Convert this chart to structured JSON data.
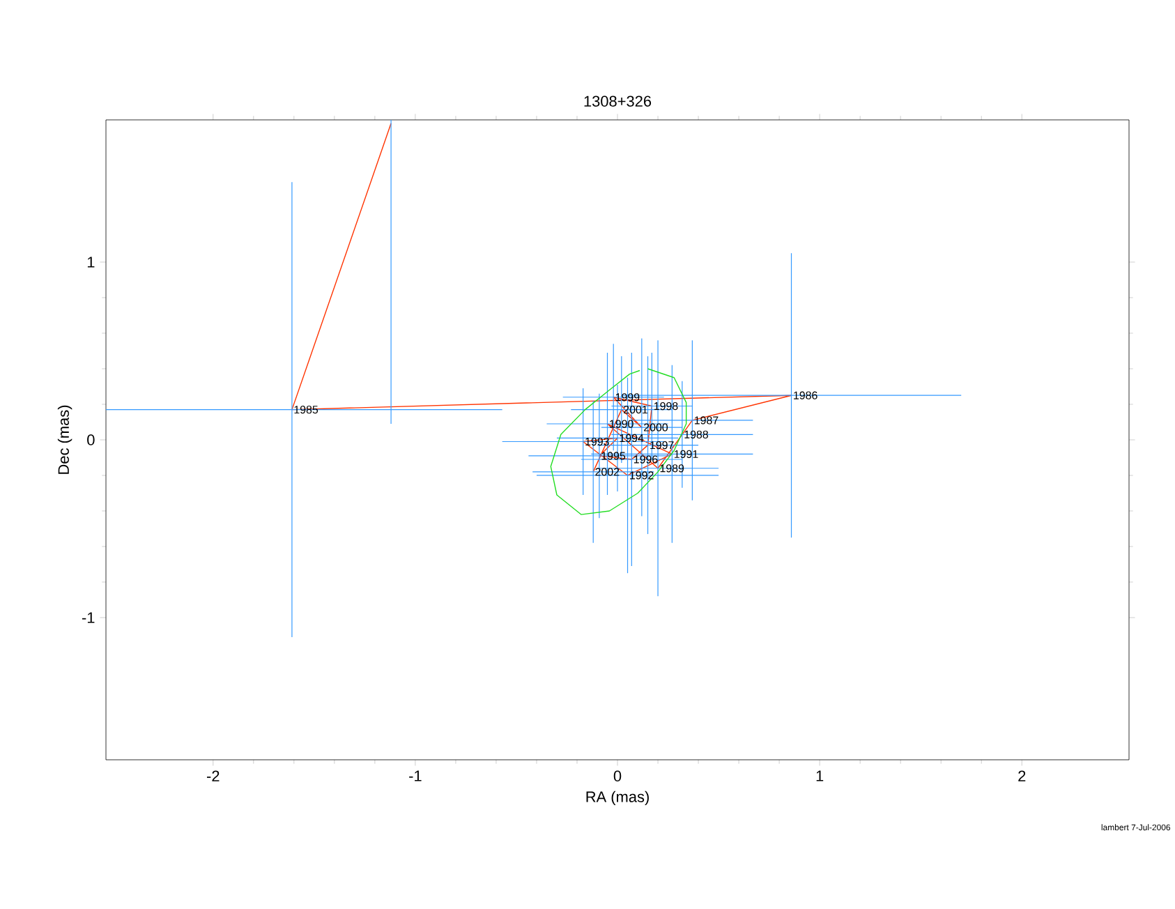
{
  "chart_data": {
    "type": "line",
    "title": "1308+326",
    "xlabel": "RA (mas)",
    "ylabel": "Dec (mas)",
    "xlim": [
      -2.53,
      2.53
    ],
    "ylim": [
      -1.8,
      1.8
    ],
    "xticks": [
      -2,
      -1,
      0,
      1,
      2
    ],
    "yticks": [
      -1,
      0,
      1
    ],
    "grid": false,
    "series": [
      {
        "color": "#ff3300",
        "marker": "none",
        "line_style": "solid",
        "x": [
          -1.12,
          -1.61,
          0.86,
          0.37,
          0.32,
          0.2,
          -0.05,
          0.27,
          0.05,
          -0.17,
          0.0,
          -0.09,
          0.07,
          0.15,
          0.17,
          -0.02,
          0.12,
          0.02,
          -0.12
        ],
        "values": [
          1.78,
          0.17,
          0.25,
          0.11,
          0.03,
          -0.16,
          0.09,
          -0.08,
          -0.2,
          -0.01,
          0.01,
          -0.09,
          -0.11,
          -0.03,
          0.19,
          0.24,
          0.07,
          0.17,
          -0.18
        ],
        "xerrors": [
          null,
          [
            -2.53,
            -0.57
          ],
          0.84,
          0.3,
          0.35,
          0.3,
          0.3,
          0.4,
          0.45,
          0.4,
          0.3,
          0.35,
          0.25,
          0.25,
          0.2,
          0.25,
          0.2,
          0.25,
          0.3
        ],
        "errors": [
          [
            0.09,
            1.8
          ],
          1.28,
          0.8,
          0.45,
          0.3,
          0.72,
          0.4,
          0.5,
          0.55,
          0.3,
          0.3,
          0.35,
          0.6,
          0.5,
          0.3,
          0.3,
          0.5,
          0.3,
          0.4
        ]
      },
      {
        "type": "line",
        "color": "#22dd22",
        "marker": "none",
        "line_style": "solid",
        "x": [
          0.15,
          0.28,
          0.34,
          0.34,
          0.28,
          0.2,
          0.1,
          -0.04,
          -0.18,
          -0.3,
          -0.33,
          -0.28,
          -0.16,
          -0.04,
          0.06,
          0.11
        ],
        "values": [
          0.4,
          0.35,
          0.21,
          0.09,
          -0.06,
          -0.18,
          -0.3,
          -0.4,
          -0.42,
          -0.31,
          -0.15,
          0.03,
          0.17,
          0.28,
          0.37,
          0.39
        ]
      }
    ],
    "annotations": [
      {
        "text": "1985",
        "x": -1.61,
        "y": 0.17
      },
      {
        "text": "1986",
        "x": 0.86,
        "y": 0.25
      },
      {
        "text": "1987",
        "x": 0.37,
        "y": 0.11
      },
      {
        "text": "1988",
        "x": 0.32,
        "y": 0.03
      },
      {
        "text": "1989",
        "x": 0.2,
        "y": -0.16
      },
      {
        "text": "1990",
        "x": -0.05,
        "y": 0.09
      },
      {
        "text": "1991",
        "x": 0.27,
        "y": -0.08
      },
      {
        "text": "1992",
        "x": 0.05,
        "y": -0.2
      },
      {
        "text": "1993",
        "x": -0.17,
        "y": -0.01
      },
      {
        "text": "1994",
        "x": 0.0,
        "y": 0.01
      },
      {
        "text": "1995",
        "x": -0.09,
        "y": -0.09
      },
      {
        "text": "1996",
        "x": 0.07,
        "y": -0.11
      },
      {
        "text": "1997",
        "x": 0.15,
        "y": -0.03
      },
      {
        "text": "1998",
        "x": 0.17,
        "y": 0.19
      },
      {
        "text": "1999",
        "x": -0.02,
        "y": 0.24
      },
      {
        "text": "2000",
        "x": 0.12,
        "y": 0.07
      },
      {
        "text": "2001",
        "x": 0.02,
        "y": 0.17
      },
      {
        "text": "2002",
        "x": -0.12,
        "y": -0.18
      },
      "lambert 7-Jul-2006"
    ]
  }
}
